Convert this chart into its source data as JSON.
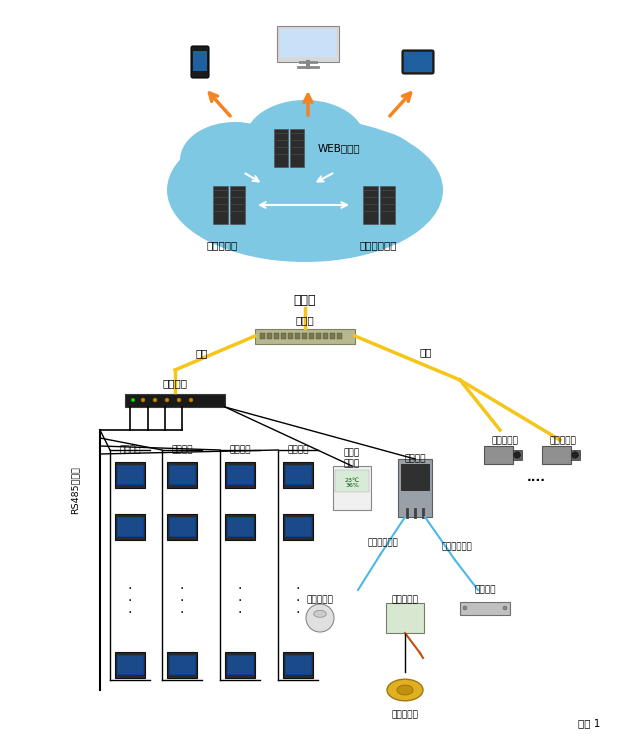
{
  "bg_color": "#ffffff",
  "cloud_color": "#7ec8e3",
  "page_label": "页面 1",
  "labels": {
    "web_server": "WEB服务器",
    "app_server": "应用服务器",
    "db_server": "数据库服务器",
    "to_internet": "至外网",
    "switch": "交换机",
    "gateway": "运维网关",
    "rs485": "RS485通讯线",
    "network_label_left": "网线",
    "network_label_right": "网线",
    "temp_sensor": "温湿度\n变送器",
    "comm_unit": "遥信单元",
    "switch_signal_left": "开关量信号线",
    "switch_signal_right": "开关量信号线",
    "smoke_detector": "烟雾报警器",
    "water_controller": "漏水控制器",
    "door_switch": "门磁开关",
    "water_sensor": "漏水感应绳",
    "camera1": "网络摄像机",
    "camera2": "网络摄像机",
    "meter1": "低压仪表",
    "meter2": "低压仪表",
    "meter3": "低压仪表",
    "meter4": "低压仪表"
  },
  "colors": {
    "orange_arrow": "#f5831f",
    "yellow_line": "#f5c518",
    "blue_line": "#4db8e8",
    "black_line": "#000000",
    "white_arrow": "#ffffff",
    "server_color": "#2c2c2c",
    "text_color": "#000000"
  }
}
